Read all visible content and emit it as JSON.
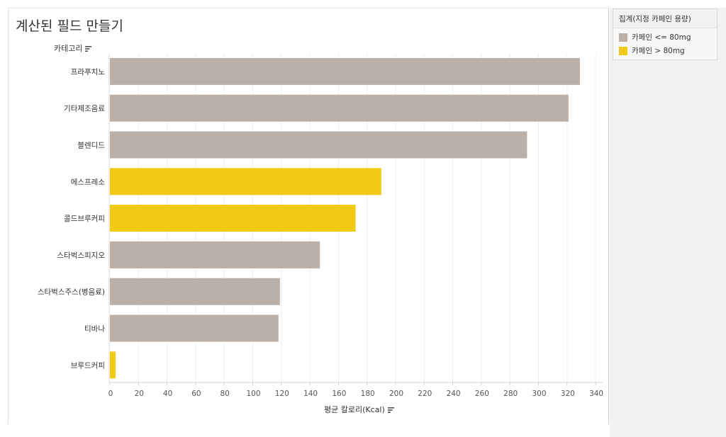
{
  "title": "계산된 필드 만들기",
  "y_field_label": "카테고리",
  "x_field_label": "평균 칼로리(Kcal)",
  "legend": {
    "title": "집계(지정 카페인 용량)",
    "items": [
      {
        "label": "카페인 <= 80mg",
        "color": "#bab0a8"
      },
      {
        "label": "카페인 > 80mg",
        "color": "#f1cb13"
      }
    ]
  },
  "icons": {
    "sort": "sort-descending-icon"
  },
  "chart_data": {
    "type": "bar",
    "orientation": "horizontal",
    "categories": [
      "프라푸치노",
      "기타제조음료",
      "블렌디드",
      "에스프레소",
      "콜드브루커피",
      "스타벅스피지오",
      "스타벅스주스(병음료)",
      "티바나",
      "브루드커피"
    ],
    "values": [
      329,
      321,
      292,
      190,
      172,
      147,
      119,
      118,
      4
    ],
    "groups": [
      "카페인 <= 80mg",
      "카페인 <= 80mg",
      "카페인 <= 80mg",
      "카페인 > 80mg",
      "카페인 > 80mg",
      "카페인 <= 80mg",
      "카페인 <= 80mg",
      "카페인 <= 80mg",
      "카페인 > 80mg"
    ],
    "xlim": [
      0,
      340
    ],
    "xticks": [
      "0",
      "20",
      "40",
      "60",
      "80",
      "100",
      "120",
      "140",
      "160",
      "180",
      "200",
      "220",
      "240",
      "260",
      "280",
      "300",
      "320",
      "340"
    ],
    "grid": true,
    "legend_position": "right"
  }
}
